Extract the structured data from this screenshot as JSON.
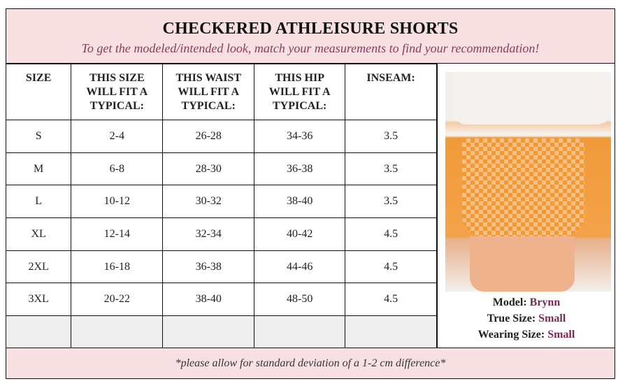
{
  "title": "CHECKERED ATHLEISURE SHORTS",
  "subtitle": "To get the modeled/intended look, match your measurements to find your recommendation!",
  "headers": [
    "SIZE",
    "THIS SIZE WILL FIT A TYPICAL:",
    "THIS WAIST WILL FIT A TYPICAL:",
    "THIS HIP WILL FIT A TYPICAL:",
    "INSEAM:"
  ],
  "rows": [
    [
      "S",
      "2-4",
      "26-28",
      "34-36",
      "3.5"
    ],
    [
      "M",
      "6-8",
      "28-30",
      "36-38",
      "3.5"
    ],
    [
      "L",
      "10-12",
      "30-32",
      "38-40",
      "3.5"
    ],
    [
      "XL",
      "12-14",
      "32-34",
      "40-42",
      "4.5"
    ],
    [
      "2XL",
      "16-18",
      "36-38",
      "44-46",
      "4.5"
    ],
    [
      "3XL",
      "20-22",
      "38-40",
      "48-50",
      "4.5"
    ]
  ],
  "model": {
    "model_label": "Model:",
    "model_value": "Brynn",
    "true_label": "True Size:",
    "true_value": "Small",
    "wearing_label": "Wearing Size:",
    "wearing_value": "Small"
  },
  "footer": "*please allow for standard deviation of a 1-2 cm difference*",
  "colors": {
    "header_bg": "#f9e1e3",
    "accent": "#7d2a52"
  }
}
